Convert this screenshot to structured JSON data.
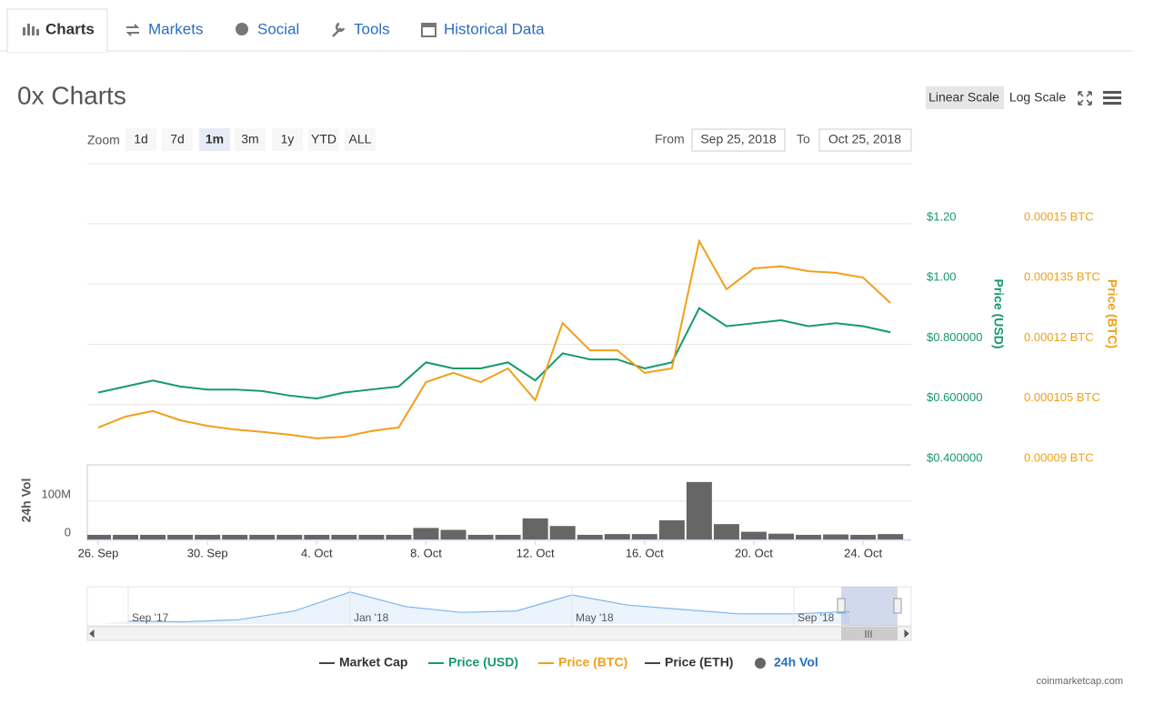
{
  "tabs": {
    "items": [
      "Charts",
      "Markets",
      "Social",
      "Tools",
      "Historical Data"
    ],
    "active": 0
  },
  "header": {
    "title": "0x Charts",
    "scale_buttons": [
      "Linear Scale",
      "Log Scale"
    ],
    "active_scale": 0
  },
  "zoom": {
    "label": "Zoom",
    "buttons": [
      "1d",
      "7d",
      "1m",
      "3m",
      "1y",
      "YTD",
      "ALL"
    ],
    "active": 2
  },
  "range": {
    "from_label": "From",
    "from": "Sep 25, 2018",
    "to_label": "To",
    "to": "Oct 25, 2018"
  },
  "chart_data": {
    "type": "line",
    "categories": [
      "26. Sep",
      null,
      null,
      null,
      "30. Sep",
      null,
      null,
      null,
      "4. Oct",
      null,
      null,
      null,
      "8. Oct",
      null,
      null,
      null,
      "12. Oct",
      null,
      null,
      null,
      "16. Oct",
      null,
      null,
      null,
      "20. Oct",
      null,
      null,
      null,
      "24. Oct",
      null
    ],
    "ylabel": "Price (USD)",
    "y2label": "Price (BTC)",
    "vol_label": "24h Vol",
    "ylim": [
      0.4,
      1.2
    ],
    "yticks": [
      {
        "value": 1.2,
        "label": "$1.20"
      },
      {
        "value": 1.0,
        "label": "$1.00"
      },
      {
        "value": 0.8,
        "label": "$0.800000"
      },
      {
        "value": 0.6,
        "label": "$0.600000"
      },
      {
        "value": 0.4,
        "label": "$0.400000"
      }
    ],
    "y2lim": [
      9e-05,
      0.00015
    ],
    "y2ticks": [
      {
        "value": 0.00015,
        "label": "0.00015 BTC"
      },
      {
        "value": 0.000135,
        "label": "0.000135 BTC"
      },
      {
        "value": 0.00012,
        "label": "0.00012 BTC"
      },
      {
        "value": 0.000105,
        "label": "0.000105 BTC"
      },
      {
        "value": 9e-05,
        "label": "0.00009 BTC"
      }
    ],
    "vol_ylim": [
      0,
      190000000
    ],
    "vol_yticks": [
      {
        "value": 100000000,
        "label": "100M"
      },
      0
    ],
    "grid": true,
    "series": [
      {
        "name": "Market Cap",
        "color": "#434348",
        "text_color": "#333333"
      },
      {
        "name": "Price (USD)",
        "color": "#16996b",
        "text_color": "#16996b",
        "axis": "y",
        "values": [
          0.64,
          0.66,
          0.68,
          0.66,
          0.65,
          0.65,
          0.645,
          0.63,
          0.62,
          0.64,
          0.65,
          0.66,
          0.74,
          0.72,
          0.72,
          0.74,
          0.68,
          0.77,
          0.75,
          0.75,
          0.72,
          0.74,
          0.92,
          0.86,
          0.87,
          0.88,
          0.86,
          0.87,
          0.86,
          0.84
        ]
      },
      {
        "name": "Price (BTC)",
        "color": "#f0a01b",
        "text_color": "#f0a01b",
        "axis": "y2",
        "values": [
          9.93e-05,
          0.000102,
          0.0001034,
          0.0001011,
          9.97e-05,
          9.88e-05,
          9.82e-05,
          9.75e-05,
          9.66e-05,
          9.7e-05,
          9.84e-05,
          9.93e-05,
          0.0001106,
          0.0001129,
          0.0001106,
          0.000114,
          0.0001061,
          0.0001253,
          0.0001185,
          0.0001185,
          0.0001129,
          0.000114,
          0.0001457,
          0.0001337,
          0.0001389,
          0.0001394,
          0.0001382,
          0.0001378,
          0.0001366,
          0.0001303
        ]
      },
      {
        "name": "Price (ETH)",
        "color": "#434348",
        "text_color": "#333333"
      },
      {
        "name": "24h Vol",
        "color": "#666666",
        "text_color": "#2a6ebb",
        "axis": "vol",
        "values": [
          12000000,
          12000000,
          12000000,
          12000000,
          12000000,
          12000000,
          12000000,
          12000000,
          12000000,
          12000000,
          12000000,
          12000000,
          30000000,
          25000000,
          12000000,
          12000000,
          55000000,
          35000000,
          12000000,
          14000000,
          14000000,
          50000000,
          150000000,
          40000000,
          20000000,
          15000000,
          12000000,
          13000000,
          12000000,
          14000000
        ]
      }
    ]
  },
  "navigator": {
    "categories": [
      "Sep '17",
      null,
      null,
      null,
      "Jan '18",
      null,
      null,
      null,
      "May '18",
      null,
      null,
      null,
      "Sep '18",
      null
    ],
    "values": [
      0.2,
      0.15,
      0.3,
      0.9,
      2.2,
      1.2,
      0.8,
      0.9,
      2.0,
      1.3,
      1.0,
      0.7,
      0.7,
      0.85
    ],
    "ylim": [
      0,
      2.5
    ]
  },
  "credit": "coinmarketcap.com"
}
